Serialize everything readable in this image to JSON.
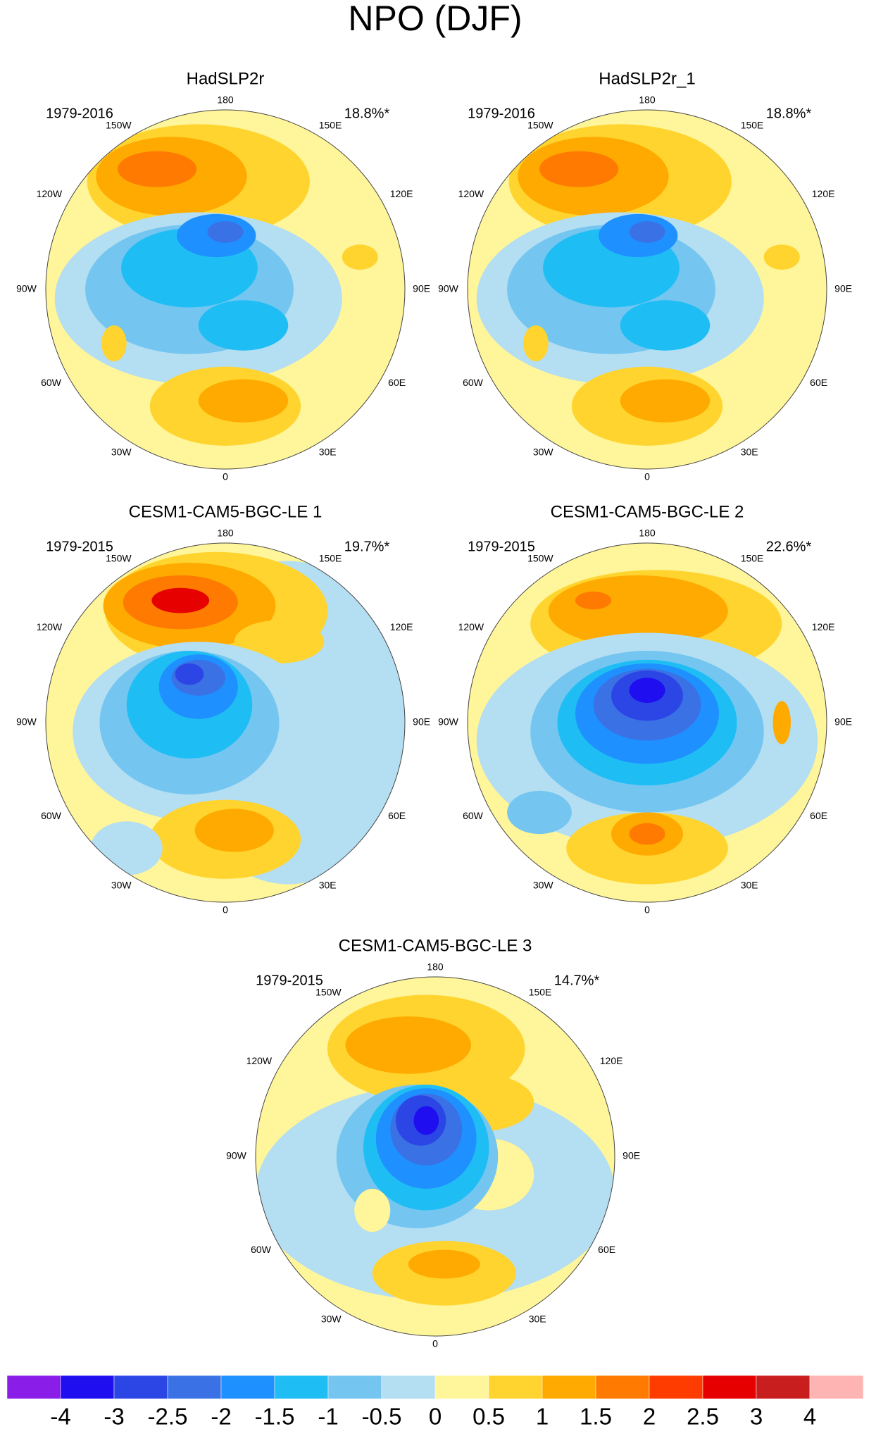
{
  "title": "NPO (DJF)",
  "panels": [
    {
      "title": "HadSLP2r",
      "period": "1979-2016",
      "variance": "18.8%*"
    },
    {
      "title": "HadSLP2r_1",
      "period": "1979-2016",
      "variance": "18.8%*"
    },
    {
      "title": "CESM1-CAM5-BGC-LE 1",
      "period": "1979-2015",
      "variance": "19.7%*"
    },
    {
      "title": "CESM1-CAM5-BGC-LE 2",
      "period": "1979-2015",
      "variance": "22.6%*"
    },
    {
      "title": "CESM1-CAM5-BGC-LE 3",
      "period": "1979-2015",
      "variance": "14.7%*"
    }
  ],
  "longitude_labels": [
    "180",
    "150E",
    "120E",
    "90E",
    "60E",
    "30E",
    "0",
    "30W",
    "60W",
    "90W",
    "120W",
    "150W"
  ],
  "colorbar": {
    "levels": [
      -4,
      -3,
      -2.5,
      -2,
      -1.5,
      -1,
      -0.5,
      0,
      0.5,
      1,
      1.5,
      2,
      2.5,
      3,
      4
    ],
    "colors": [
      "#8a1ee8",
      "#1e0ef0",
      "#2c46e6",
      "#3a72e6",
      "#1e90ff",
      "#1ebef5",
      "#74c6f0",
      "#b4def2",
      "#fff59a",
      "#ffd42e",
      "#ffaa00",
      "#ff7a00",
      "#ff3c00",
      "#e60000",
      "#c81e1e",
      "#ffb4b4"
    ]
  }
}
